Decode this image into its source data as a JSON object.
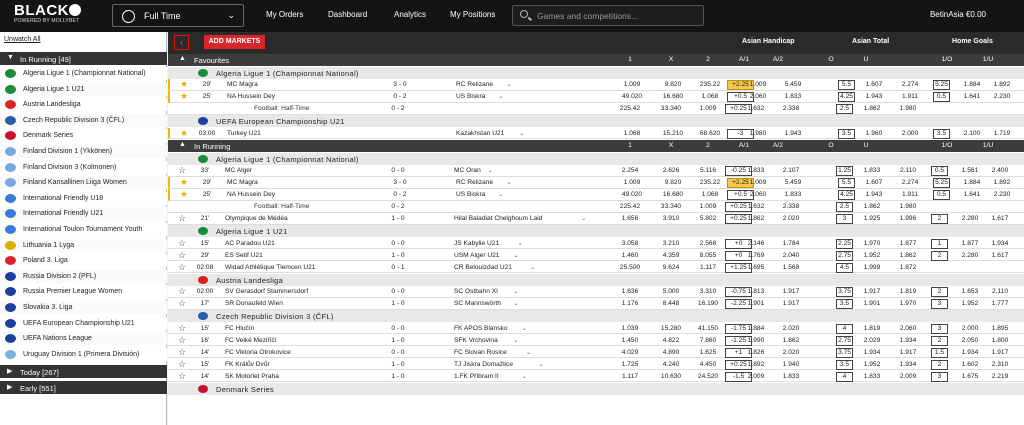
{
  "brand": {
    "logo": "BLACK",
    "tagline": "POWERED BY MOLLYBET"
  },
  "topbar": {
    "sport": "Full Time",
    "nav": [
      "My Orders",
      "Dashboard",
      "Analytics",
      "My Positions"
    ],
    "search_placeholder": "Games and competitions...",
    "balance": "BetinAsia €0.00"
  },
  "sidebar": {
    "unwatch": "Unwatch All",
    "in_running": "In Running [49]",
    "today": "Today [267]",
    "early": "Early [551]",
    "items": [
      {
        "label": "Algeria Ligue 1 (Championnat National)",
        "flag": "#1b8a3a"
      },
      {
        "label": "Algeria Ligue 1 U21",
        "flag": "#1b8a3a"
      },
      {
        "label": "Austria Landesliga",
        "flag": "#d8232a"
      },
      {
        "label": "Czech Republic Division 3 (ČFL)",
        "flag": "#2a5cad"
      },
      {
        "label": "Denmark Series",
        "flag": "#c8102e"
      },
      {
        "label": "Finland Division 1 (Ykkönen)",
        "flag": "#7aa7e0"
      },
      {
        "label": "Finland Division 3 (Kolmonen)",
        "flag": "#7aa7e0"
      },
      {
        "label": "Finland Kansallinen Liiga Women",
        "flag": "#7aa7e0"
      },
      {
        "label": "International Friendly U18",
        "flag": "#3a7bd5"
      },
      {
        "label": "International Friendly U21",
        "flag": "#3a7bd5"
      },
      {
        "label": "International Toulon Tournament Youth",
        "flag": "#3a7bd5"
      },
      {
        "label": "Lithuania 1 Lyga",
        "flag": "#d8b000"
      },
      {
        "label": "Poland 3. Liga",
        "flag": "#d8232a"
      },
      {
        "label": "Russia Division 2 (PFL)",
        "flag": "#1c3f9e"
      },
      {
        "label": "Russia Premier League Women",
        "flag": "#1c3f9e"
      },
      {
        "label": "Slovakia 3. Liga",
        "flag": "#1c3f9e"
      },
      {
        "label": "UEFA European Championship U21",
        "flag": "#1c3f9e"
      },
      {
        "label": "UEFA Nations League",
        "flag": "#1c3f9e"
      },
      {
        "label": "Uruguay Division 1 (Primera División)",
        "flag": "#7ab0e0"
      }
    ]
  },
  "toolbar": {
    "add_markets": "ADD MARKETS"
  },
  "markets": {
    "ah": "Asian Handicap",
    "at": "Asian Total",
    "hg": "Home Goals"
  },
  "cols": [
    "1",
    "X",
    "2",
    "A/1",
    "A/2",
    "O",
    "U",
    "1/O",
    "1/U"
  ],
  "favourites": {
    "title": "Favourites",
    "leagues": [
      {
        "name": "Algeria Ligue 1 (Championnat National)",
        "flag": "#1b8a3a",
        "rows": [
          {
            "min": "29'",
            "home": "MC Magra",
            "score": "3 - 0",
            "away": "RC Relizane",
            "o1": "1.009",
            "ox": "9.820",
            "o2": "235.22",
            "ah": "+2.25",
            "hl": true,
            "a1": "1.009",
            "a2": "5.459",
            "tl": "5.5",
            "o": "1.607",
            "u": "2.274",
            "hgl": "5.25",
            "ho": "1.884",
            "hu": "1.892",
            "star": true
          },
          {
            "min": "25'",
            "home": "NA Hussein Dey",
            "score": "0 - 2",
            "away": "US Biskra",
            "o1": "49.020",
            "ox": "16.680",
            "o2": "1.068",
            "ah": "+0.5",
            "a1": "2.060",
            "a2": "1.833",
            "tl": "4.25",
            "o": "1.943",
            "u": "1.911",
            "hgl": "0.5",
            "ho": "1.641",
            "hu": "2.230",
            "star": true
          },
          {
            "min": "",
            "home": "Football: Half-Time",
            "score": "0 - 2",
            "away": "",
            "o1": "225.42",
            "ox": "33.340",
            "o2": "1.009",
            "ah": "+0.25",
            "a1": "1.632",
            "a2": "2.338",
            "tl": "2.5",
            "o": "1.862",
            "u": "1.980",
            "hgl": "",
            "ho": "",
            "hu": "",
            "star": false,
            "sub": true
          }
        ]
      },
      {
        "name": "UEFA European Championship U21",
        "flag": "#1c3f9e",
        "rows": [
          {
            "min": "03:00",
            "home": "Turkey U21",
            "score": "",
            "away": "Kazakhstan U21",
            "o1": "1.068",
            "ox": "15.210",
            "o2": "68.620",
            "ah": "-3",
            "a1": "1.980",
            "a2": "1.943",
            "tl": "3.5",
            "o": "1.960",
            "u": "2.000",
            "hgl": "3.5",
            "ho": "2.100",
            "hu": "1.719",
            "star": true
          }
        ]
      }
    ]
  },
  "in_running": {
    "title": "In Running",
    "leagues": [
      {
        "name": "Algeria Ligue 1 (Championnat National)",
        "flag": "#1b8a3a",
        "rows": [
          {
            "min": "33'",
            "home": "MC Alger",
            "score": "0 - 0",
            "away": "MC Oran",
            "o1": "2.254",
            "ox": "2.626",
            "o2": "5.116",
            "ah": "-0.25",
            "a1": "1.833",
            "a2": "2.107",
            "tl": "1.25",
            "o": "1.833",
            "u": "2.110",
            "hgl": "0.5",
            "ho": "1.561",
            "hu": "2.400",
            "star": false
          },
          {
            "min": "29'",
            "home": "MC Magra",
            "score": "3 - 0",
            "away": "RC Relizane",
            "o1": "1.009",
            "ox": "9.820",
            "o2": "235.22",
            "ah": "+2.25",
            "hl": true,
            "a1": "1.009",
            "a2": "5.459",
            "tl": "5.5",
            "o": "1.607",
            "u": "2.274",
            "hgl": "5.25",
            "ho": "1.884",
            "hu": "1.892",
            "star": true
          },
          {
            "min": "25'",
            "home": "NA Hussein Dey",
            "score": "0 - 2",
            "away": "US Biskra",
            "o1": "49.020",
            "ox": "16.680",
            "o2": "1.068",
            "ah": "+0.5",
            "a1": "2.060",
            "a2": "1.833",
            "tl": "4.25",
            "o": "1.943",
            "u": "1.911",
            "hgl": "0.5",
            "ho": "1.641",
            "hu": "2.230",
            "star": true
          },
          {
            "min": "",
            "home": "Football: Half-Time",
            "score": "0 - 2",
            "away": "",
            "o1": "225.42",
            "ox": "33.340",
            "o2": "1.009",
            "ah": "+0.25",
            "a1": "1.632",
            "a2": "2.338",
            "tl": "2.5",
            "o": "1.862",
            "u": "1.980",
            "hgl": "",
            "ho": "",
            "hu": "",
            "star": false,
            "sub": true
          },
          {
            "min": "21'",
            "home": "Olympique de Médéa",
            "score": "1 - 0",
            "away": "Hilal Baladiat Chelghoum Laid",
            "o1": "1.656",
            "ox": "3.910",
            "o2": "5.802",
            "ah": "+0.25",
            "a1": "1.862",
            "a2": "2.020",
            "tl": "3",
            "o": "1.925",
            "u": "1.996",
            "hgl": "2",
            "ho": "2.280",
            "hu": "1.617",
            "star": false
          }
        ]
      },
      {
        "name": "Algeria Ligue 1 U21",
        "flag": "#1b8a3a",
        "rows": [
          {
            "min": "15'",
            "home": "AC Paradou U21",
            "score": "0 - 0",
            "away": "JS Kabylie U21",
            "o1": "3.058",
            "ox": "3.210",
            "o2": "2.568",
            "ah": "+0",
            "a1": "2.146",
            "a2": "1.784",
            "tl": "2.25",
            "o": "1.970",
            "u": "1.877",
            "hgl": "1",
            "ho": "1.877",
            "hu": "1.934",
            "star": false
          },
          {
            "min": "29'",
            "home": "ES Setif U21",
            "score": "1 - 0",
            "away": "USM Alger U21",
            "o1": "1.460",
            "ox": "4.359",
            "o2": "8.055",
            "ah": "+0",
            "a1": "1.769",
            "a2": "2.040",
            "tl": "2.75",
            "o": "1.952",
            "u": "1.862",
            "hgl": "2",
            "ho": "2.280",
            "hu": "1.617",
            "star": false
          },
          {
            "min": "02:08",
            "home": "Widad Athlétique Tlemcen U21",
            "score": "0 - 1",
            "away": "CR Belouizdad U21",
            "o1": "25.500",
            "ox": "9.624",
            "o2": "1.117",
            "ah": "+1.25",
            "a1": "1.695",
            "a2": "1.568",
            "tl": "4.5",
            "o": "1.999",
            "u": "1.872",
            "hgl": "",
            "ho": "",
            "hu": "",
            "star": false
          }
        ]
      },
      {
        "name": "Austria Landesliga",
        "flag": "#d8232a",
        "rows": [
          {
            "min": "02:00",
            "home": "SV Gerasdorf Stammersdorf",
            "score": "0 - 0",
            "away": "SC Ostbahn XI",
            "o1": "1.636",
            "ox": "5.000",
            "o2": "3.310",
            "ah": "-0.75",
            "a1": "1.813",
            "a2": "1.917",
            "tl": "3.75",
            "o": "1.917",
            "u": "1.819",
            "hgl": "2",
            "ho": "1.653",
            "hu": "2.110",
            "star": false
          },
          {
            "min": "17'",
            "home": "SR Donaufeld Wien",
            "score": "1 - 0",
            "away": "SC Mannswörth",
            "o1": "1.176",
            "ox": "8.448",
            "o2": "16.190",
            "ah": "-2.25",
            "a1": "1.901",
            "a2": "1.917",
            "tl": "3.5",
            "o": "1.901",
            "u": "1.970",
            "hgl": "3",
            "ho": "1.952",
            "hu": "1.777",
            "star": false
          }
        ]
      },
      {
        "name": "Czech Republic Division 3 (ČFL)",
        "flag": "#2a5cad",
        "rows": [
          {
            "min": "15'",
            "home": "FC Hlučín",
            "score": "0 - 0",
            "away": "FK APOS Blansko",
            "o1": "1.039",
            "ox": "15.280",
            "o2": "41.150",
            "ah": "-1.75",
            "a1": "1.884",
            "a2": "2.020",
            "tl": "4",
            "o": "1.819",
            "u": "2.060",
            "hgl": "3",
            "ho": "2.000",
            "hu": "1.895",
            "star": false
          },
          {
            "min": "16'",
            "home": "FC Velké Meziříčí",
            "score": "1 - 0",
            "away": "SFK Vrchovina",
            "o1": "1.450",
            "ox": "4.822",
            "o2": "7.860",
            "ah": "-1.25",
            "a1": "1.990",
            "a2": "1.862",
            "tl": "2.75",
            "o": "2.029",
            "u": "1.934",
            "hgl": "2",
            "ho": "2.050",
            "hu": "1.800",
            "star": false
          },
          {
            "min": "14'",
            "home": "FC Viktoria Otrokovice",
            "score": "0 - 0",
            "away": "FC Slovan Rosice",
            "o1": "4.029",
            "ox": "4.890",
            "o2": "1.625",
            "ah": "+1",
            "a1": "1.826",
            "a2": "2.020",
            "tl": "3.75",
            "o": "1.934",
            "u": "1.917",
            "hgl": "1.5",
            "ho": "1.934",
            "hu": "1.917",
            "star": false
          },
          {
            "min": "15'",
            "home": "FK Králův Dvůr",
            "score": "1 - 0",
            "away": "TJ Jiskra Domažlice",
            "o1": "1.725",
            "ox": "4.240",
            "o2": "4.450",
            "ah": "+0.25",
            "a1": "1.892",
            "a2": "1.940",
            "tl": "3.5",
            "o": "1.952",
            "u": "1.934",
            "hgl": "2",
            "ho": "1.602",
            "hu": "2.310",
            "star": false
          },
          {
            "min": "14'",
            "home": "SK Motorlet Praha",
            "score": "1 - 0",
            "away": "1.FK Příbram II",
            "o1": "1.117",
            "ox": "10.630",
            "o2": "24.520",
            "ah": "-1.5",
            "a1": "2.009",
            "a2": "1.833",
            "tl": "4",
            "o": "1.833",
            "u": "2.009",
            "hgl": "3",
            "ho": "1.675",
            "hu": "2.219",
            "star": false
          }
        ]
      },
      {
        "name": "Denmark Series",
        "flag": "#c8102e",
        "rows": []
      }
    ]
  }
}
